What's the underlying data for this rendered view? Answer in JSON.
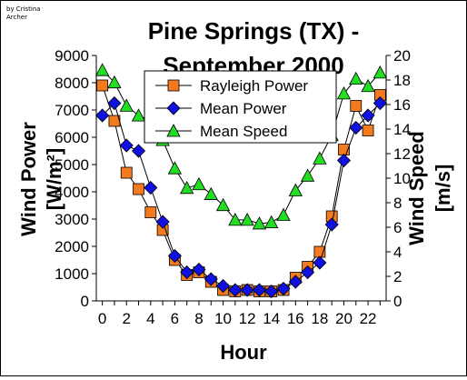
{
  "credit": {
    "line1": "by Cristina",
    "line2": "Archer"
  },
  "chart_data": {
    "type": "line",
    "title_line1": "Pine Springs (TX) -",
    "title_line2": "September 2000",
    "xlabel": "Hour",
    "ylabel_left_line1": "Wind Power",
    "ylabel_left_line2": "[W/m²]",
    "ylabel_right_line1": "Wind Speed",
    "ylabel_right_line2": "[m/s]",
    "xlim": [
      -0.5,
      23.5
    ],
    "ylim_left": [
      0,
      9000
    ],
    "ylim_right": [
      0,
      20
    ],
    "x_ticks": [
      0,
      2,
      4,
      6,
      8,
      10,
      12,
      14,
      16,
      18,
      20,
      22
    ],
    "y_ticks_left": [
      0,
      1000,
      2000,
      3000,
      4000,
      5000,
      6000,
      7000,
      8000,
      9000
    ],
    "y_ticks_right": [
      0,
      2,
      4,
      6,
      8,
      10,
      12,
      14,
      16,
      18,
      20
    ],
    "legend_position": "top-center",
    "x": [
      0,
      1,
      2,
      3,
      4,
      5,
      6,
      7,
      8,
      9,
      10,
      11,
      12,
      13,
      14,
      15,
      16,
      17,
      18,
      19,
      20,
      21,
      22,
      23
    ],
    "series": [
      {
        "name": "Rayleigh Power",
        "axis": "left",
        "marker": "square",
        "color": "#f47a20",
        "values": [
          7900,
          6600,
          4700,
          4100,
          3250,
          2600,
          1500,
          950,
          1050,
          700,
          400,
          350,
          400,
          350,
          350,
          400,
          850,
          1250,
          1800,
          3100,
          5550,
          7150,
          6250,
          7550
        ]
      },
      {
        "name": "Mean Power",
        "axis": "left",
        "marker": "diamond",
        "color": "#1010e0",
        "values": [
          6800,
          7250,
          5700,
          5500,
          4150,
          2900,
          1650,
          1050,
          1150,
          800,
          550,
          400,
          400,
          400,
          350,
          450,
          700,
          1050,
          1400,
          2800,
          5150,
          6350,
          6800,
          7250
        ]
      },
      {
        "name": "Mean Speed",
        "axis": "right",
        "marker": "triangle",
        "color": "#22dd22",
        "values": [
          18.8,
          17.8,
          15.9,
          15.1,
          14.7,
          13.1,
          10.8,
          9.2,
          9.5,
          8.7,
          7.8,
          6.6,
          6.6,
          6.3,
          6.4,
          7.0,
          9.0,
          10.2,
          11.6,
          13.5,
          16.9,
          18.1,
          17.5,
          18.6
        ]
      }
    ]
  }
}
